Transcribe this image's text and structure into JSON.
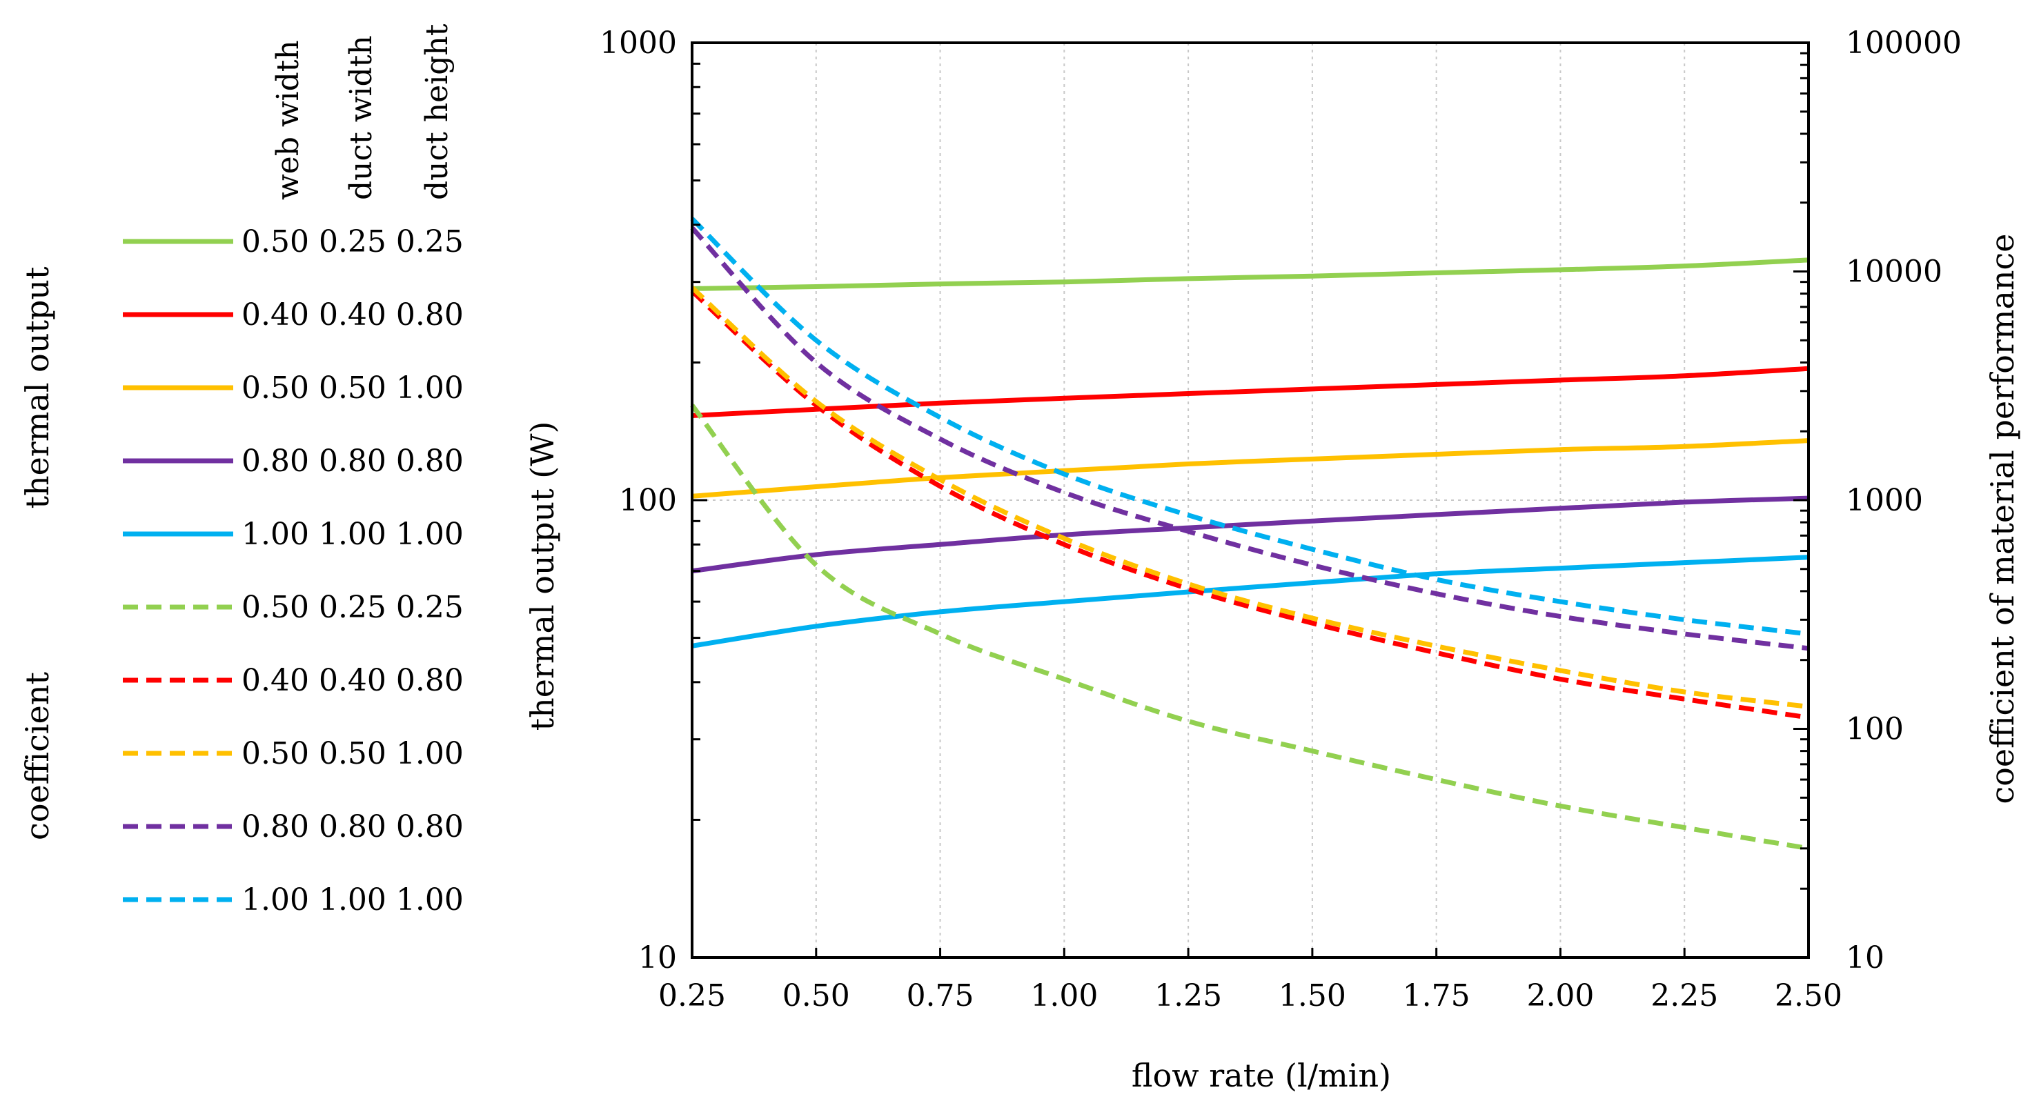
{
  "chart_data": {
    "type": "line",
    "xlabel": "flow rate (l/min)",
    "ylabel_left": "thermal output (W)",
    "ylabel_right": "coefficient of material performance",
    "x_ticks": [
      "0.25",
      "0.50",
      "0.75",
      "1.00",
      "1.25",
      "1.50",
      "1.75",
      "2.00",
      "2.25",
      "2.50"
    ],
    "xlim": [
      0.25,
      2.5
    ],
    "y_left_ticks": [
      "10",
      "100",
      "1000"
    ],
    "y_left_scale": "log",
    "ylim_left": [
      10,
      1000
    ],
    "y_right_ticks": [
      "10",
      "100",
      "1000",
      "10000",
      "100000"
    ],
    "y_right_scale": "log",
    "ylim_right": [
      10,
      100000
    ],
    "grid": "vertical-dotted",
    "legend": {
      "column_headers": [
        "web width",
        "duct width",
        "duct height"
      ],
      "group_labels": [
        "thermal output",
        "coefficient"
      ]
    },
    "x": [
      0.25,
      0.5,
      0.75,
      1.0,
      1.25,
      1.5,
      1.75,
      2.0,
      2.25,
      2.5
    ],
    "series": [
      {
        "name": "thermal output 0.50 0.25 0.25",
        "group": "thermal output",
        "axis": "left",
        "style": "solid",
        "color": "#92d050",
        "web": "0.50",
        "duct_w": "0.25",
        "duct_h": "0.25",
        "values": [
          290,
          293,
          297,
          300,
          305,
          309,
          314,
          319,
          325,
          335
        ]
      },
      {
        "name": "thermal output 0.40 0.40 0.80",
        "group": "thermal output",
        "axis": "left",
        "style": "solid",
        "color": "#ff0000",
        "web": "0.40",
        "duct_w": "0.40",
        "duct_h": "0.80",
        "values": [
          153,
          158,
          163,
          167,
          171,
          175,
          179,
          183,
          187,
          194
        ]
      },
      {
        "name": "thermal output 0.50 0.50 1.00",
        "group": "thermal output",
        "axis": "left",
        "style": "solid",
        "color": "#ffc000",
        "web": "0.50",
        "duct_w": "0.50",
        "duct_h": "1.00",
        "values": [
          102,
          107,
          112,
          116,
          120,
          123,
          126,
          129,
          131,
          135
        ]
      },
      {
        "name": "thermal output 0.80 0.80 0.80",
        "group": "thermal output",
        "axis": "left",
        "style": "solid",
        "color": "#7030a0",
        "web": "0.80",
        "duct_w": "0.80",
        "duct_h": "0.80",
        "values": [
          70,
          76,
          80,
          84,
          87,
          90,
          93,
          96,
          99,
          101
        ]
      },
      {
        "name": "thermal output 1.00 1.00 1.00",
        "group": "thermal output",
        "axis": "left",
        "style": "solid",
        "color": "#00b0f0",
        "web": "1.00",
        "duct_w": "1.00",
        "duct_h": "1.00",
        "values": [
          48,
          53,
          57,
          60,
          63,
          66,
          69,
          71,
          73,
          75
        ]
      },
      {
        "name": "coefficient 0.50 0.25 0.25",
        "group": "coefficient",
        "axis": "right",
        "style": "dashed",
        "color": "#92d050",
        "web": "0.50",
        "duct_w": "0.25",
        "duct_h": "0.25",
        "values": [
          2600,
          520,
          260,
          165,
          108,
          80,
          60,
          46,
          37,
          30
        ]
      },
      {
        "name": "coefficient 0.40 0.40 0.80",
        "group": "coefficient",
        "axis": "right",
        "style": "dashed",
        "color": "#ff0000",
        "web": "0.40",
        "duct_w": "0.40",
        "duct_h": "0.80",
        "values": [
          8200,
          2600,
          1150,
          640,
          410,
          290,
          215,
          165,
          135,
          112
        ]
      },
      {
        "name": "coefficient 0.50 0.50 1.00",
        "group": "coefficient",
        "axis": "right",
        "style": "dashed",
        "color": "#ffc000",
        "web": "0.50",
        "duct_w": "0.50",
        "duct_h": "1.00",
        "values": [
          8500,
          2700,
          1230,
          680,
          430,
          305,
          230,
          180,
          145,
          125
        ]
      },
      {
        "name": "coefficient 0.80 0.80 0.80",
        "group": "coefficient",
        "axis": "right",
        "style": "dashed",
        "color": "#7030a0",
        "web": "0.80",
        "duct_w": "0.80",
        "duct_h": "0.80",
        "values": [
          15500,
          4000,
          1850,
          1080,
          730,
          520,
          390,
          310,
          260,
          225
        ]
      },
      {
        "name": "coefficient 1.00 1.00 1.00",
        "group": "coefficient",
        "axis": "right",
        "style": "dashed",
        "color": "#00b0f0",
        "web": "1.00",
        "duct_w": "1.00",
        "duct_h": "1.00",
        "values": [
          17000,
          5000,
          2300,
          1300,
          860,
          610,
          450,
          360,
          300,
          260
        ]
      }
    ]
  }
}
